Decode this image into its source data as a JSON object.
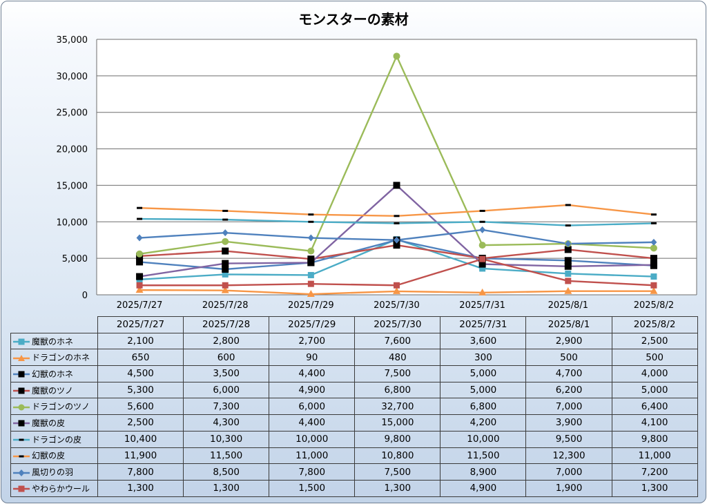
{
  "chart_data": {
    "type": "line",
    "title": "モンスターの素材",
    "categories": [
      "2025/7/27",
      "2025/7/28",
      "2025/7/29",
      "2025/7/30",
      "2025/7/31",
      "2025/8/1",
      "2025/8/2"
    ],
    "ylim": [
      0,
      35000
    ],
    "y_ticks": [
      "0",
      "5,000",
      "10,000",
      "15,000",
      "20,000",
      "25,000",
      "30,000",
      "35,000"
    ],
    "grid": true,
    "legend": "data-table",
    "series": [
      {
        "name": "魔獣のホネ",
        "color": "#4bacc6",
        "marker": "square",
        "line": true,
        "values": [
          2100,
          2800,
          2700,
          7600,
          3600,
          2900,
          2500
        ],
        "labels": [
          "2,100",
          "2,800",
          "2,700",
          "7,600",
          "3,600",
          "2,900",
          "2,500"
        ]
      },
      {
        "name": "ドラゴンのホネ",
        "color": "#f79646",
        "marker": "triangle",
        "line": true,
        "values": [
          650,
          600,
          90,
          480,
          300,
          500,
          500
        ],
        "labels": [
          "650",
          "600",
          "90",
          "480",
          "300",
          "500",
          "500"
        ]
      },
      {
        "name": "幻獣のホネ",
        "color": "#4f81bd",
        "marker": "square-black",
        "line": true,
        "values": [
          4500,
          3500,
          4400,
          7500,
          5000,
          4700,
          4000
        ],
        "labels": [
          "4,500",
          "3,500",
          "4,400",
          "7,500",
          "5,000",
          "4,700",
          "4,000"
        ]
      },
      {
        "name": "魔獣のツノ",
        "color": "#c0504d",
        "marker": "square-black",
        "line": true,
        "values": [
          5300,
          6000,
          4900,
          6800,
          5000,
          6200,
          5000
        ],
        "labels": [
          "5,300",
          "6,000",
          "4,900",
          "6,800",
          "5,000",
          "6,200",
          "5,000"
        ]
      },
      {
        "name": "ドラゴンのツノ",
        "color": "#9bbb59",
        "marker": "circle",
        "line": true,
        "values": [
          5600,
          7300,
          6000,
          32700,
          6800,
          7000,
          6400
        ],
        "labels": [
          "5,600",
          "7,300",
          "6,000",
          "32,700",
          "6,800",
          "7,000",
          "6,400"
        ]
      },
      {
        "name": "魔獣の皮",
        "color": "#8064a2",
        "marker": "square-black",
        "line": true,
        "values": [
          2500,
          4300,
          4400,
          15000,
          4200,
          3900,
          4100
        ],
        "labels": [
          "2,500",
          "4,300",
          "4,400",
          "15,000",
          "4,200",
          "3,900",
          "4,100"
        ]
      },
      {
        "name": "ドラゴンの皮",
        "color": "#4bacc6",
        "marker": "dash",
        "line": true,
        "values": [
          10400,
          10300,
          10000,
          9800,
          10000,
          9500,
          9800
        ],
        "labels": [
          "10,400",
          "10,300",
          "10,000",
          "9,800",
          "10,000",
          "9,500",
          "9,800"
        ]
      },
      {
        "name": "幻獣の皮",
        "color": "#f79646",
        "marker": "dash",
        "line": true,
        "values": [
          11900,
          11500,
          11000,
          10800,
          11500,
          12300,
          11000
        ],
        "labels": [
          "11,900",
          "11,500",
          "11,000",
          "10,800",
          "11,500",
          "12,300",
          "11,000"
        ]
      },
      {
        "name": "風切りの羽",
        "color": "#4f81bd",
        "marker": "diamond",
        "line": true,
        "values": [
          7800,
          8500,
          7800,
          7500,
          8900,
          7000,
          7200
        ],
        "labels": [
          "7,800",
          "8,500",
          "7,800",
          "7,500",
          "8,900",
          "7,000",
          "7,200"
        ]
      },
      {
        "name": "やわらかウール",
        "color": "#c0504d",
        "marker": "square",
        "line": true,
        "values": [
          1300,
          1300,
          1500,
          1300,
          4900,
          1900,
          1300
        ],
        "labels": [
          "1,300",
          "1,300",
          "1,500",
          "1,300",
          "4,900",
          "1,900",
          "1,300"
        ]
      }
    ]
  }
}
